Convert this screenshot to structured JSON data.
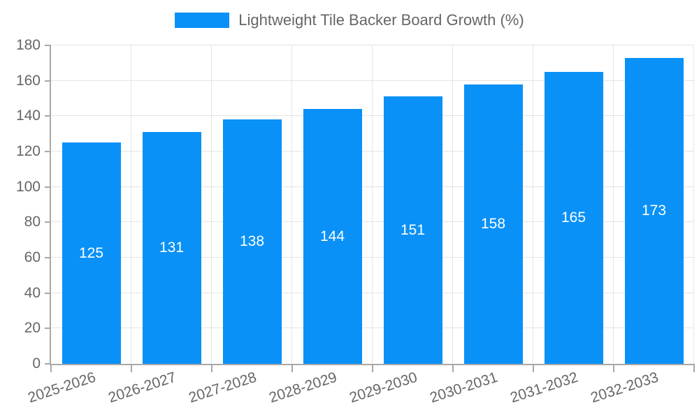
{
  "legend": {
    "label": "Lightweight Tile Backer Board Growth (%)"
  },
  "chart_data": {
    "type": "bar",
    "series_name": "Lightweight Tile Backer Board Growth (%)",
    "categories": [
      "2025-2026",
      "2026-2027",
      "2027-2028",
      "2028-2029",
      "2029-2030",
      "2030-2031",
      "2031-2032",
      "2032-2033"
    ],
    "values": [
      125,
      131,
      138,
      144,
      151,
      158,
      165,
      173
    ],
    "value_labels_shown": true,
    "value_label_position": "center",
    "xlabel": "",
    "ylabel": "",
    "ylim": [
      0,
      180
    ],
    "yticks": [
      0,
      20,
      40,
      60,
      80,
      100,
      120,
      140,
      160,
      180
    ],
    "grid": true,
    "legend_position": "top",
    "x_tick_rotation_deg": -18,
    "colors": {
      "bar": "#0991f7",
      "value_label": "#ffffff",
      "grid": "#e4e4e4",
      "axis": "#a8a8a8",
      "tick_label": "#666666",
      "legend_text": "#666666",
      "background": "#ffffff"
    }
  }
}
